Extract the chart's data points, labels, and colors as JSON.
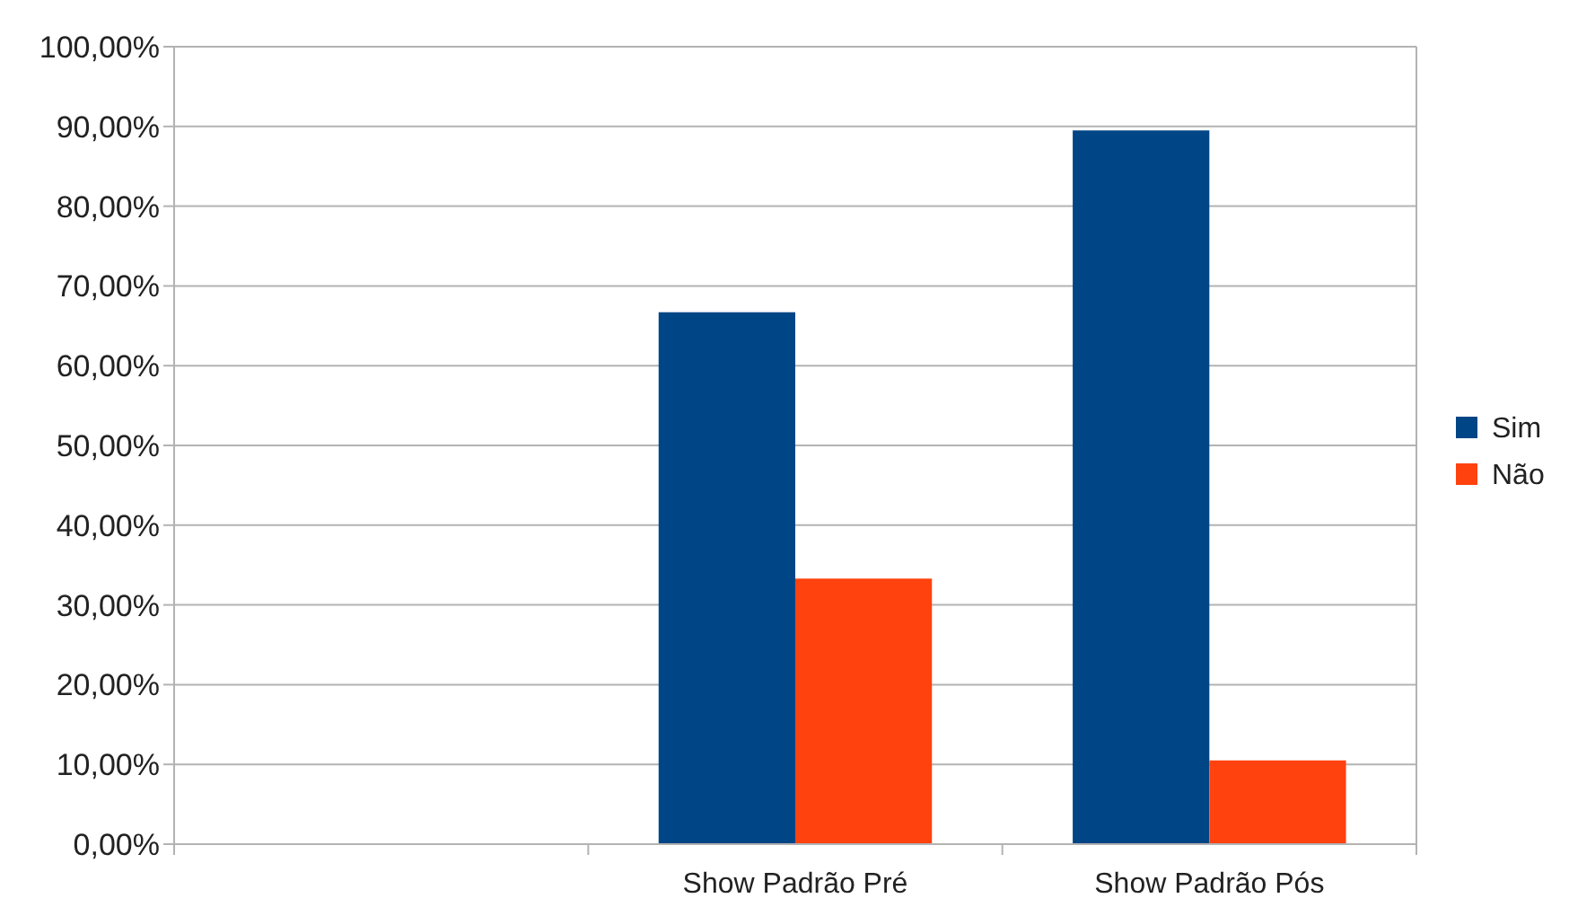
{
  "chart_data": {
    "type": "bar",
    "categories": [
      null,
      "Show Padrão Pré",
      "Show Padrão Pós"
    ],
    "series": [
      {
        "name": "Sim",
        "color": "#004586",
        "values": [
          null,
          66.7,
          89.5
        ]
      },
      {
        "name": "Não",
        "color": "#ff420e",
        "values": [
          null,
          33.3,
          10.5
        ]
      }
    ],
    "ylim": [
      0,
      100
    ],
    "yticks": [
      {
        "value": 0,
        "label": "0,00%"
      },
      {
        "value": 10,
        "label": "10,00%"
      },
      {
        "value": 20,
        "label": "20,00%"
      },
      {
        "value": 30,
        "label": "30,00%"
      },
      {
        "value": 40,
        "label": "40,00%"
      },
      {
        "value": 50,
        "label": "50,00%"
      },
      {
        "value": 60,
        "label": "60,00%"
      },
      {
        "value": 70,
        "label": "70,00%"
      },
      {
        "value": 80,
        "label": "80,00%"
      },
      {
        "value": 90,
        "label": "90,00%"
      },
      {
        "value": 100,
        "label": "100,00%"
      }
    ],
    "grid": "y",
    "legend": "right"
  }
}
